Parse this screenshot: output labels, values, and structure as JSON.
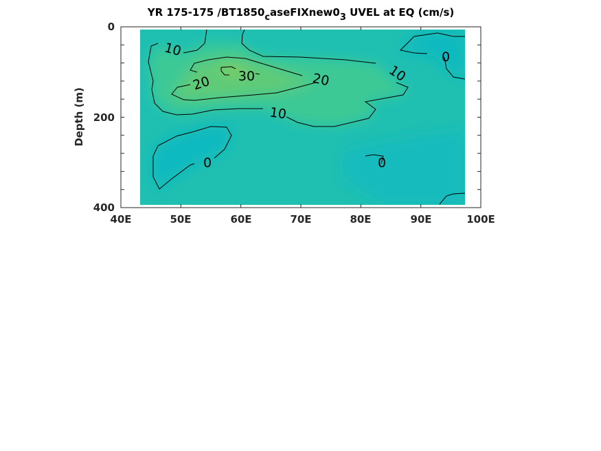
{
  "chart_data": {
    "type": "contour",
    "title_parts": {
      "a": "YR 175-175 /BT1850",
      "sub1": "c",
      "b": "aseFIXnew0",
      "sub2": "3",
      "c": " UVEL at EQ (cm/s)"
    },
    "xlabel": "",
    "ylabel": "Depth (m)",
    "xlim": [
      40,
      100
    ],
    "ylim": [
      400,
      0
    ],
    "x_ticks": [
      "40E",
      "50E",
      "60E",
      "70E",
      "80E",
      "90E",
      "100E"
    ],
    "y_ticks": [
      "0",
      "200",
      "400"
    ],
    "data_extent": {
      "lon": [
        43.3,
        97.1
      ],
      "depth": [
        5,
        395
      ]
    },
    "contour_levels": [
      0,
      10,
      20,
      30
    ],
    "contour_labels": [
      "10",
      "10",
      "10",
      "20",
      "20",
      "30",
      "0",
      "0",
      "0"
    ],
    "max_value_approx": 32,
    "max_location": {
      "lon": 59,
      "depth": 105
    },
    "colormap": "parula",
    "colors": {
      "low": "#0bbac0",
      "base": "#1fbfb2",
      "mid": "#3cc995",
      "high": "#5fcb78",
      "peak": "#7ccd62"
    }
  }
}
